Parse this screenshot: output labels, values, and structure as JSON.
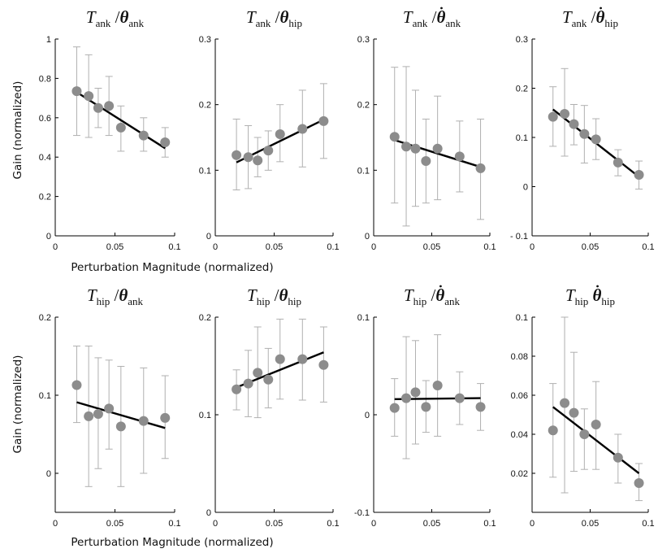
{
  "ylabel": "Gain (normalized)",
  "xlabel": "Perturbation Magnitude (normalized)",
  "colors": {
    "point": "#8c8c8c",
    "errorbar": "#b0b0b0",
    "fit": "#000000",
    "axis": "#000000"
  },
  "chart_data": [
    {
      "type": "scatter",
      "title": {
        "t": "T",
        "tsub": "ank",
        "slash": "/",
        "theta": "θ",
        "dot": false,
        "thsub": "ank"
      },
      "xlim": [
        0,
        0.1
      ],
      "ylim": [
        0,
        1
      ],
      "xticks": [
        0,
        0.05,
        0.1
      ],
      "xtick_labels": [
        "0",
        "0.05",
        "0.1"
      ],
      "yticks": [
        0,
        0.2,
        0.4,
        0.6,
        0.8,
        1
      ],
      "ytick_labels": [
        "0",
        "0.2",
        "0.4",
        "0.6",
        "0.8",
        "1"
      ],
      "x": [
        0.018,
        0.028,
        0.036,
        0.045,
        0.055,
        0.074,
        0.092
      ],
      "y": [
        0.735,
        0.71,
        0.65,
        0.66,
        0.55,
        0.51,
        0.475
      ],
      "err_low": [
        0.51,
        0.5,
        0.55,
        0.51,
        0.43,
        0.43,
        0.4
      ],
      "err_high": [
        0.96,
        0.92,
        0.75,
        0.81,
        0.66,
        0.6,
        0.55
      ],
      "fit": [
        [
          0.018,
          0.73
        ],
        [
          0.092,
          0.445
        ]
      ],
      "xlabel": "",
      "ylabel": "Gain (normalized)"
    },
    {
      "type": "scatter",
      "title": {
        "t": "T",
        "tsub": "ank",
        "slash": "/",
        "theta": "θ",
        "dot": false,
        "thsub": "hip"
      },
      "xlim": [
        0,
        0.1
      ],
      "ylim": [
        0,
        0.3
      ],
      "xticks": [
        0,
        0.05,
        0.1
      ],
      "xtick_labels": [
        "0",
        "0.05",
        "0.1"
      ],
      "yticks": [
        0,
        0.1,
        0.2,
        0.3
      ],
      "ytick_labels": [
        "0",
        "0.1",
        "0.2",
        "0.3"
      ],
      "x": [
        0.018,
        0.028,
        0.036,
        0.045,
        0.055,
        0.074,
        0.092
      ],
      "y": [
        0.123,
        0.12,
        0.115,
        0.13,
        0.155,
        0.163,
        0.175
      ],
      "err_low": [
        0.07,
        0.072,
        0.09,
        0.1,
        0.113,
        0.105,
        0.118
      ],
      "err_high": [
        0.178,
        0.168,
        0.15,
        0.16,
        0.2,
        0.222,
        0.232
      ],
      "fit": [
        [
          0.018,
          0.112
        ],
        [
          0.092,
          0.177
        ]
      ]
    },
    {
      "type": "scatter",
      "title": {
        "t": "T",
        "tsub": "ank",
        "slash": "/",
        "theta": "θ",
        "dot": true,
        "thsub": "ank"
      },
      "xlim": [
        0,
        0.1
      ],
      "ylim": [
        0,
        0.3
      ],
      "xticks": [
        0,
        0.05,
        0.1
      ],
      "xtick_labels": [
        "0",
        "0.05",
        "0.1"
      ],
      "yticks": [
        0,
        0.1,
        0.2,
        0.3
      ],
      "ytick_labels": [
        "0",
        "0.1",
        "0.2",
        "0.3"
      ],
      "x": [
        0.018,
        0.028,
        0.036,
        0.045,
        0.055,
        0.074,
        0.092
      ],
      "y": [
        0.151,
        0.136,
        0.133,
        0.114,
        0.133,
        0.121,
        0.103
      ],
      "err_low": [
        0.05,
        0.015,
        0.045,
        0.05,
        0.055,
        0.067,
        0.025
      ],
      "err_high": [
        0.257,
        0.258,
        0.222,
        0.178,
        0.213,
        0.175,
        0.178
      ],
      "fit": [
        [
          0.018,
          0.146
        ],
        [
          0.092,
          0.105
        ]
      ]
    },
    {
      "type": "scatter",
      "title": {
        "t": "T",
        "tsub": "ank",
        "slash": "/",
        "theta": "θ",
        "dot": true,
        "thsub": "hip"
      },
      "xlim": [
        0,
        0.1
      ],
      "ylim": [
        -0.1,
        0.3
      ],
      "xticks": [
        0,
        0.05,
        0.1
      ],
      "xtick_labels": [
        "0",
        "0.05",
        "0.1"
      ],
      "yticks": [
        -0.1,
        0,
        0.1,
        0.2,
        0.3
      ],
      "ytick_labels": [
        "- 0.1",
        "0",
        "0.1",
        "0.2",
        "0.3"
      ],
      "x": [
        0.018,
        0.028,
        0.036,
        0.045,
        0.055,
        0.074,
        0.092
      ],
      "y": [
        0.142,
        0.148,
        0.127,
        0.107,
        0.096,
        0.049,
        0.024
      ],
      "err_low": [
        0.082,
        0.062,
        0.085,
        0.048,
        0.055,
        0.022,
        -0.005
      ],
      "err_high": [
        0.203,
        0.24,
        0.167,
        0.165,
        0.138,
        0.075,
        0.052
      ],
      "fit": [
        [
          0.018,
          0.157
        ],
        [
          0.092,
          0.02
        ]
      ]
    },
    {
      "type": "scatter",
      "title": {
        "t": "T",
        "tsub": "hip",
        "slash": "/",
        "theta": "θ",
        "dot": false,
        "thsub": "ank"
      },
      "xlim": [
        0,
        0.1
      ],
      "ylim": [
        -0.05,
        0.2
      ],
      "xticks": [
        0,
        0.05,
        0.1
      ],
      "xtick_labels": [
        "0",
        "0.05",
        "0.1"
      ],
      "yticks": [
        0,
        0.1,
        0.2
      ],
      "ytick_labels": [
        "0",
        "0.1",
        "0.2"
      ],
      "x": [
        0.018,
        0.028,
        0.036,
        0.045,
        0.055,
        0.074,
        0.092
      ],
      "y": [
        0.113,
        0.073,
        0.076,
        0.083,
        0.06,
        0.067,
        0.071
      ],
      "err_low": [
        0.065,
        -0.017,
        0.006,
        0.031,
        -0.017,
        0.0,
        0.019
      ],
      "err_high": [
        0.163,
        0.163,
        0.148,
        0.145,
        0.137,
        0.135,
        0.125
      ],
      "fit": [
        [
          0.018,
          0.091
        ],
        [
          0.092,
          0.058
        ]
      ],
      "xlabel": "Perturbation Magnitude (normalized)",
      "ylabel": "Gain (normalized)"
    },
    {
      "type": "scatter",
      "title": {
        "t": "T",
        "tsub": "hip",
        "slash": "/",
        "theta": "θ",
        "dot": false,
        "thsub": "hip"
      },
      "xlim": [
        0,
        0.1
      ],
      "ylim": [
        0,
        0.2
      ],
      "xticks": [
        0,
        0.05,
        0.1
      ],
      "xtick_labels": [
        "0",
        "0.05",
        "0.1"
      ],
      "yticks": [
        0,
        0.1,
        0.2
      ],
      "ytick_labels": [
        "0",
        "0.1",
        "0.2"
      ],
      "x": [
        0.018,
        0.028,
        0.036,
        0.045,
        0.055,
        0.074,
        0.092
      ],
      "y": [
        0.126,
        0.132,
        0.143,
        0.136,
        0.157,
        0.157,
        0.151
      ],
      "err_low": [
        0.105,
        0.098,
        0.097,
        0.107,
        0.116,
        0.115,
        0.113
      ],
      "err_high": [
        0.146,
        0.166,
        0.19,
        0.168,
        0.198,
        0.198,
        0.19
      ],
      "fit": [
        [
          0.018,
          0.128
        ],
        [
          0.092,
          0.164
        ]
      ]
    },
    {
      "type": "scatter",
      "title": {
        "t": "T",
        "tsub": "hip",
        "slash": "/",
        "theta": "θ",
        "dot": true,
        "thsub": "ank"
      },
      "xlim": [
        0,
        0.1
      ],
      "ylim": [
        -0.1,
        0.1
      ],
      "xticks": [
        0,
        0.05,
        0.1
      ],
      "xtick_labels": [
        "0",
        "0.05",
        "0.1"
      ],
      "yticks": [
        -0.1,
        0,
        0.1
      ],
      "ytick_labels": [
        "-0.1",
        "0",
        "0.1"
      ],
      "x": [
        0.018,
        0.028,
        0.036,
        0.045,
        0.055,
        0.074,
        0.092
      ],
      "y": [
        0.007,
        0.017,
        0.023,
        0.008,
        0.03,
        0.017,
        0.008
      ],
      "err_low": [
        -0.022,
        -0.045,
        -0.03,
        -0.018,
        -0.022,
        -0.01,
        -0.016
      ],
      "err_high": [
        0.037,
        0.08,
        0.076,
        0.035,
        0.082,
        0.044,
        0.032
      ],
      "fit": [
        [
          0.018,
          0.016
        ],
        [
          0.092,
          0.017
        ]
      ]
    },
    {
      "type": "scatter",
      "title": {
        "t": "T",
        "tsub": "hip",
        "slash": "",
        "theta": "θ",
        "dot": true,
        "thsub": "hip"
      },
      "xlim": [
        0,
        0.1
      ],
      "ylim": [
        0,
        0.1
      ],
      "xticks": [
        0,
        0.05,
        0.1
      ],
      "xtick_labels": [
        "0",
        "0.05",
        "0.1"
      ],
      "yticks": [
        0.02,
        0.04,
        0.06,
        0.08,
        0.1
      ],
      "ytick_labels": [
        "0.02",
        "0.04",
        "0.06",
        "0.08",
        "0.1"
      ],
      "x": [
        0.018,
        0.028,
        0.036,
        0.045,
        0.055,
        0.074,
        0.092
      ],
      "y": [
        0.042,
        0.056,
        0.051,
        0.04,
        0.045,
        0.028,
        0.015
      ],
      "err_low": [
        0.018,
        0.01,
        0.021,
        0.022,
        0.022,
        0.015,
        0.006
      ],
      "err_high": [
        0.066,
        0.1,
        0.082,
        0.053,
        0.067,
        0.04,
        0.025
      ],
      "fit": [
        [
          0.018,
          0.054
        ],
        [
          0.092,
          0.02
        ]
      ]
    }
  ]
}
